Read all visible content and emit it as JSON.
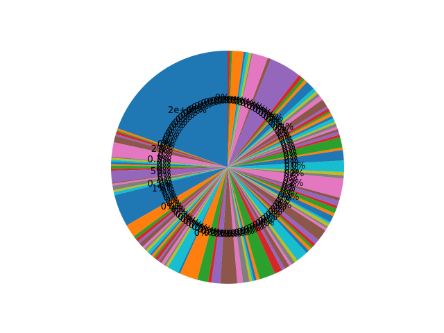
{
  "chart_data": {
    "type": "pie",
    "title": "",
    "autopct_note_hidden": null,
    "palette": [
      "#1f77b4",
      "#ff7f0e",
      "#2ca02c",
      "#d62728",
      "#9467bd",
      "#8c564b",
      "#e377c2",
      "#7f7f7f",
      "#bcbd22",
      "#17becf"
    ],
    "values": [
      22.0,
      0.3,
      0.2,
      0.4,
      0.3,
      1.0,
      2.2,
      0.2,
      0.3,
      0.3,
      0.4,
      0.2,
      0.5,
      0.3,
      1.8,
      0.2,
      0.3,
      0.7,
      0.3,
      0.5,
      5.0,
      2.0,
      0.5,
      0.5,
      0.4,
      0.7,
      0.4,
      0.3,
      0.4,
      0.5,
      0.3,
      0.4,
      0.3,
      0.5,
      0.3,
      0.4,
      0.5,
      0.3,
      0.4,
      1.8,
      0.3,
      2.8,
      1.7,
      0.5,
      1.4,
      2.6,
      0.9,
      1.0,
      0.4,
      0.3,
      0.4,
      0.5,
      2.5,
      1.2,
      0.5,
      0.8,
      0.4,
      0.6,
      0.5,
      1.8,
      0.5,
      0.5,
      0.4,
      0.5,
      0.8,
      1.8,
      0.4,
      0.3,
      0.5,
      0.3,
      1.0,
      0.5,
      0.8,
      0.4,
      0.8,
      0.5,
      3.0,
      0.5,
      0.5,
      1.8,
      1.6,
      0.4,
      1.6,
      0.4,
      0.5,
      0.4,
      0.4,
      0.5,
      0.3,
      0.6,
      0.4,
      0.5,
      0.3,
      0.5,
      0.4,
      1.2,
      0.7,
      0.5,
      0.4,
      0.6,
      1.4,
      0.5,
      0.5,
      0.6,
      5.0,
      0.5,
      2.4,
      0.2,
      0.4,
      0.5,
      0.3,
      1.8,
      0.3,
      0.4
    ],
    "label_texts": [
      "2e+01%",
      "5%",
      "2%",
      "2%",
      "0%",
      "2%",
      "2%",
      "0.3%",
      "0.5%",
      "5%",
      "0%",
      "0.%",
      "1%",
      "0%",
      "0%",
      "0%",
      "0%",
      "0%"
    ]
  }
}
